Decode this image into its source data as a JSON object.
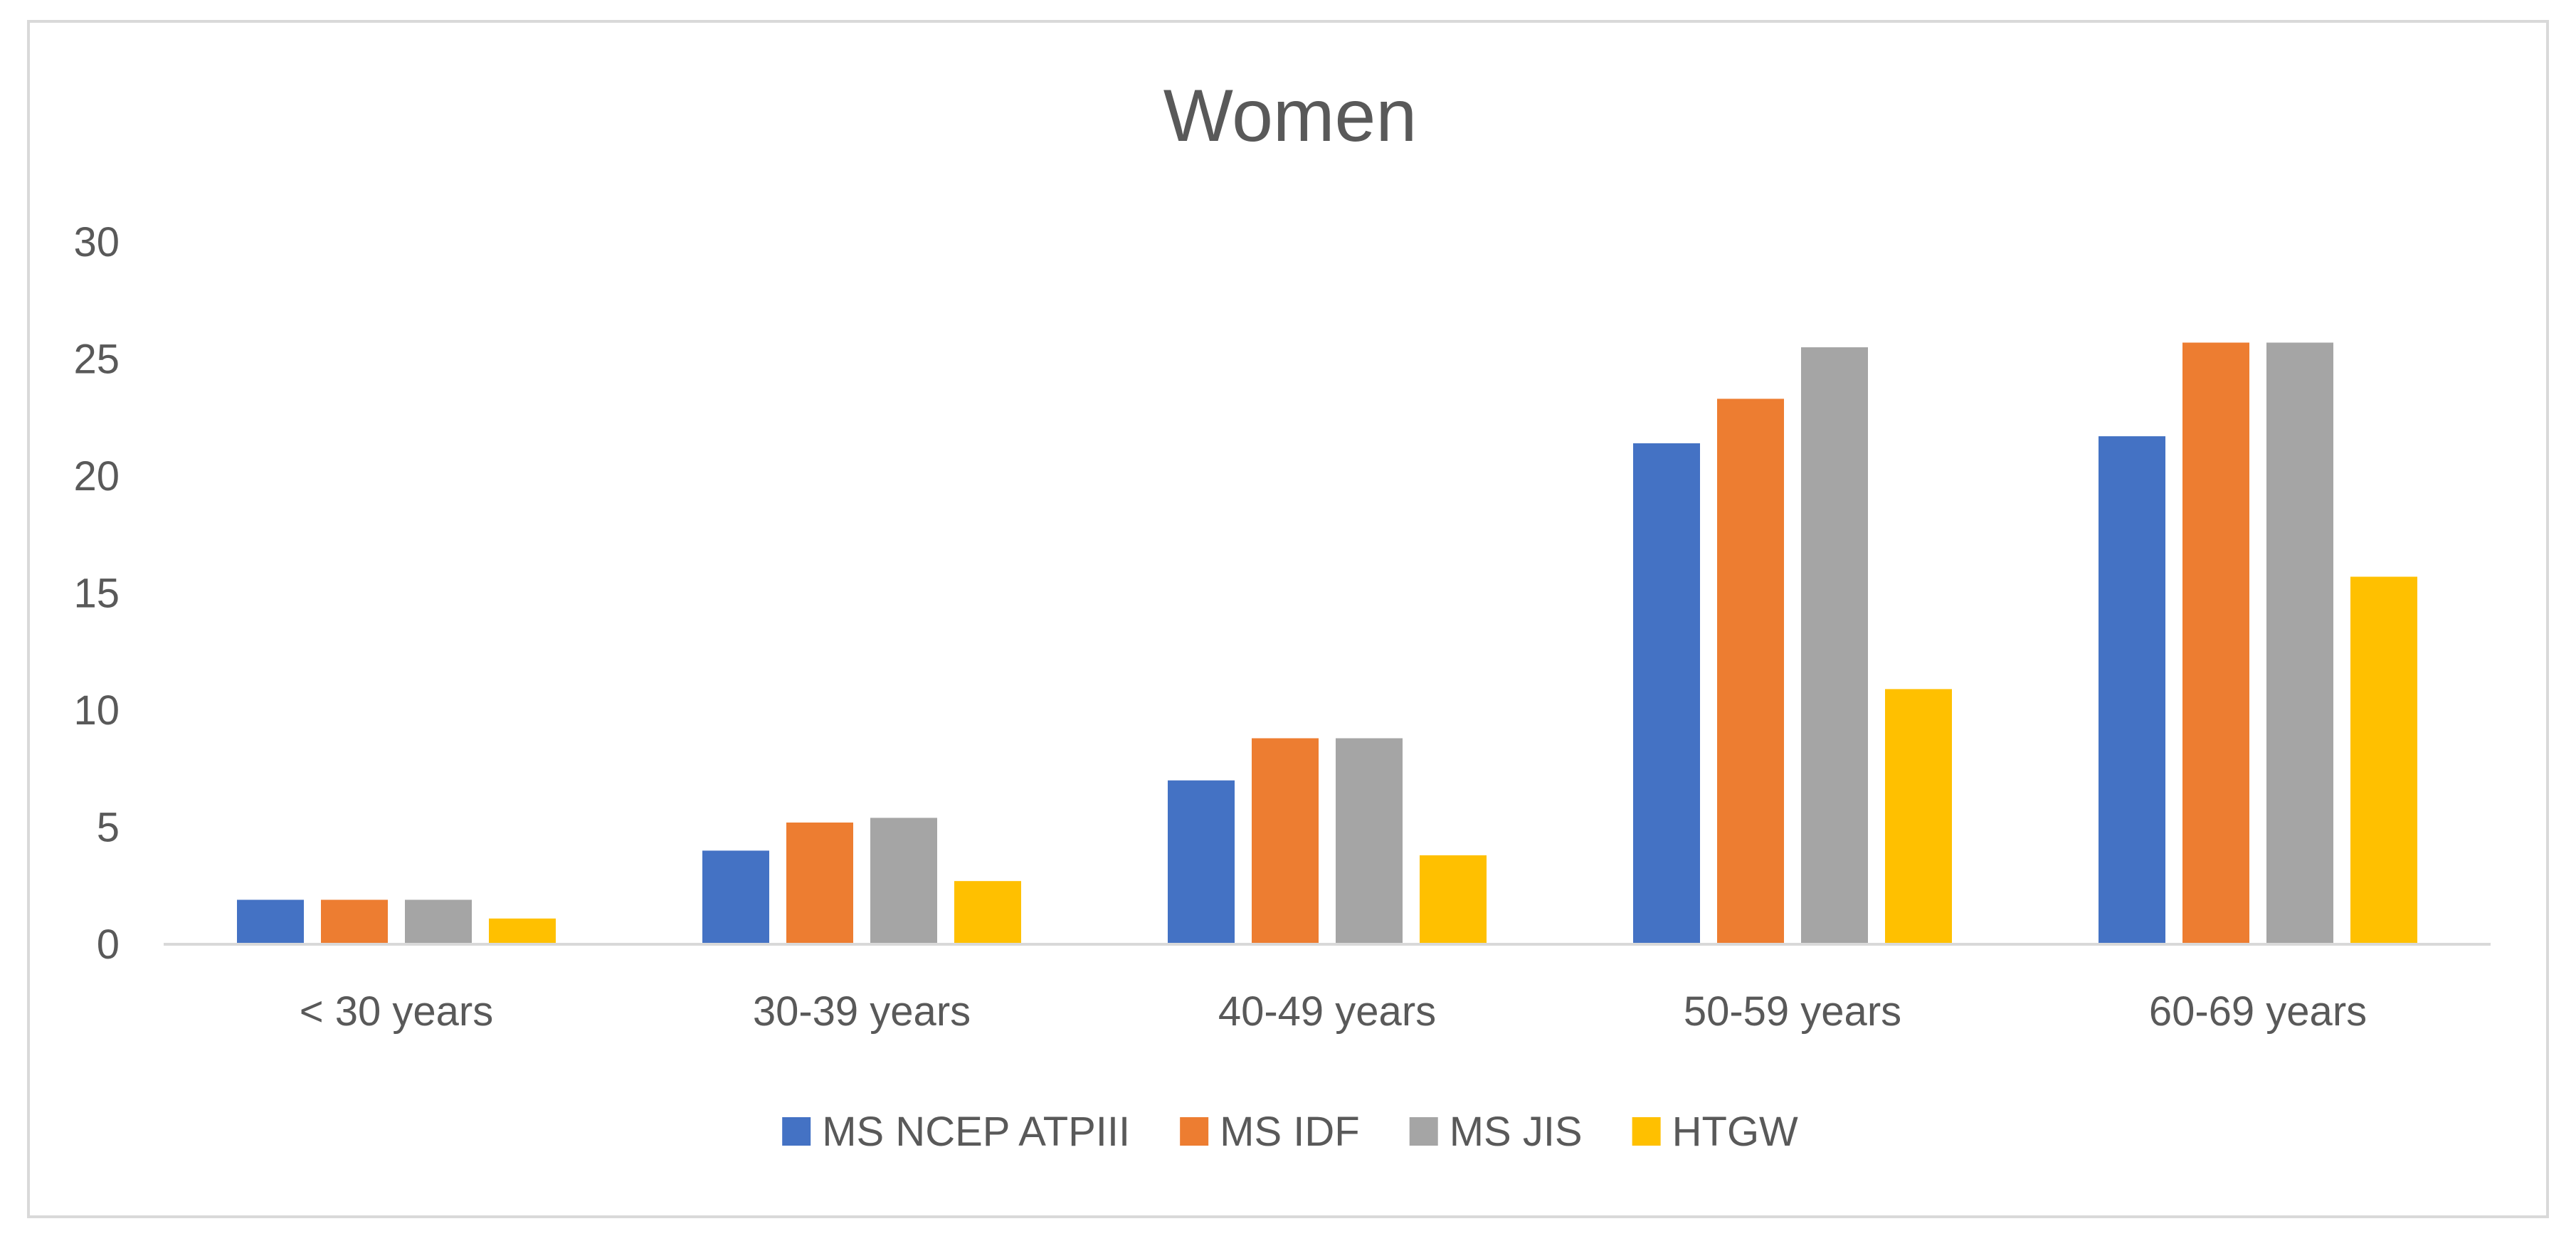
{
  "chart_data": {
    "type": "bar",
    "title": "Women",
    "xlabel": "",
    "ylabel": "",
    "ylim": [
      0,
      30
    ],
    "yticks": [
      "0",
      "5",
      "10",
      "15",
      "20",
      "25",
      "30"
    ],
    "grid": false,
    "legend_position": "bottom",
    "categories": [
      "< 30 years",
      "30-39 years",
      "40-49 years",
      "50-59 years",
      "60-69 years"
    ],
    "series": [
      {
        "name": "MS NCEP ATPIII",
        "color": "#4472c4",
        "values": [
          1.9,
          4.0,
          7.0,
          21.4,
          21.7
        ]
      },
      {
        "name": "MS IDF",
        "color": "#ed7d31",
        "values": [
          1.9,
          5.2,
          8.8,
          23.3,
          25.7
        ]
      },
      {
        "name": "MS JIS",
        "color": "#a5a5a5",
        "values": [
          1.9,
          5.4,
          8.8,
          25.5,
          25.7
        ]
      },
      {
        "name": "HTGW",
        "color": "#ffc000",
        "values": [
          1.1,
          2.7,
          3.8,
          10.9,
          15.7
        ]
      }
    ]
  }
}
